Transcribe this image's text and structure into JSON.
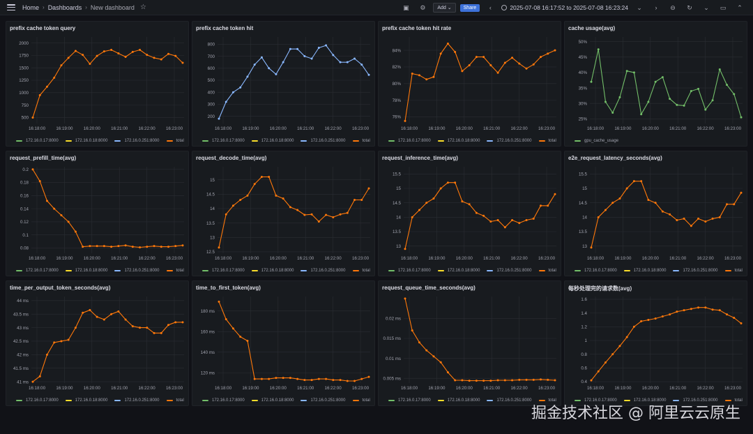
{
  "topbar": {
    "breadcrumbs": [
      "Home",
      "Dashboards",
      "New dashboard"
    ],
    "add_label": "Add",
    "share_label": "Share",
    "time_range": "2025-07-08 16:17:52 to 2025-07-08 16:23:24"
  },
  "watermark": "掘金技术社区 @ 阿里云云原生",
  "series_colors": {
    "172.16.0.17:8000": "#73bf69",
    "172.16.0.18:8000": "#fade2a",
    "172.16.0.251:8000": "#8ab8ff",
    "total": "#ff780a",
    "gpu_cache_usage": "#73bf69"
  },
  "legend_default": [
    "172.16.0.17:8000",
    "172.16.0.18:8000",
    "172.16.0.251:8000",
    "total"
  ],
  "x_ticks": [
    "16:18:00",
    "16:19:00",
    "16:20:00",
    "16:21:00",
    "16:22:00",
    "16:23:00"
  ],
  "chart_data": [
    {
      "type": "line",
      "title": "prefix cache token query",
      "series": [
        {
          "name": "total",
          "values": [
            500,
            950,
            1120,
            1300,
            1550,
            1700,
            1840,
            1760,
            1580,
            1740,
            1830,
            1860,
            1790,
            1720,
            1820,
            1860,
            1760,
            1700,
            1670,
            1780,
            1740,
            1600
          ]
        }
      ],
      "yticks": [
        "500",
        "750",
        "1000",
        "1250",
        "1500",
        "1750",
        "2000"
      ],
      "ylim": [
        380,
        2120
      ],
      "highlight": "total"
    },
    {
      "type": "line",
      "title": "prefix cache token hit",
      "series": [
        {
          "name": "172.16.0.251:8000",
          "values": [
            180,
            320,
            400,
            440,
            530,
            630,
            690,
            600,
            550,
            650,
            760,
            760,
            700,
            680,
            770,
            790,
            710,
            650,
            650,
            680,
            630,
            545
          ]
        }
      ],
      "yticks": [
        "200",
        "300",
        "400",
        "500",
        "600",
        "700",
        "800"
      ],
      "ylim": [
        140,
        860
      ],
      "highlight": "172.16.0.251:8000"
    },
    {
      "type": "line",
      "title": "prefix cache token hit rate",
      "series": [
        {
          "name": "total",
          "values": [
            75.5,
            81.2,
            81.0,
            80.5,
            80.8,
            83.6,
            84.8,
            83.8,
            81.5,
            82.2,
            83.2,
            83.2,
            82.2,
            81.3,
            82.5,
            83.1,
            82.4,
            81.8,
            82.3,
            83.2,
            83.6,
            84.0
          ]
        }
      ],
      "yticks": [
        "76%",
        "78%",
        "80%",
        "82%",
        "84%"
      ],
      "ytick_values": [
        76,
        78,
        80,
        82,
        84
      ],
      "ylim": [
        75.2,
        85.6
      ],
      "highlight": "total"
    },
    {
      "type": "line",
      "title": "cache usage(avg)",
      "series": [
        {
          "name": "gpu_cache_usage",
          "values": [
            37,
            47.5,
            30.5,
            27,
            32,
            40.5,
            40,
            26.5,
            30.5,
            37,
            38.5,
            31.5,
            29.5,
            29.3,
            34,
            34.7,
            28,
            31,
            41,
            36,
            33,
            25.5
          ]
        }
      ],
      "yticks": [
        "25%",
        "30%",
        "35%",
        "40%",
        "45%",
        "50%"
      ],
      "ytick_values": [
        25,
        30,
        35,
        40,
        45,
        50
      ],
      "ylim": [
        23.5,
        51.5
      ],
      "legend": [
        "gpu_cache_usage"
      ],
      "highlight": "gpu_cache_usage"
    },
    {
      "type": "line",
      "title": "request_prefill_time(avg)",
      "series": [
        {
          "name": "total",
          "values": [
            0.2,
            0.182,
            0.152,
            0.14,
            0.13,
            0.12,
            0.105,
            0.082,
            0.083,
            0.083,
            0.083,
            0.082,
            0.083,
            0.084,
            0.082,
            0.081,
            0.082,
            0.083,
            0.082,
            0.082,
            0.083,
            0.084
          ]
        }
      ],
      "yticks": [
        "0.08",
        "0.1",
        "0.12",
        "0.14",
        "0.16",
        "0.18",
        "0.2"
      ],
      "ytick_values": [
        0.08,
        0.1,
        0.12,
        0.14,
        0.16,
        0.18,
        0.2
      ],
      "ylim": [
        0.072,
        0.204
      ],
      "highlight": "total"
    },
    {
      "type": "line",
      "title": "request_decode_time(avg)",
      "series": [
        {
          "name": "total",
          "values": [
            12.65,
            13.8,
            14.1,
            14.3,
            14.45,
            14.85,
            15.1,
            15.1,
            14.45,
            14.35,
            14.05,
            13.95,
            13.78,
            13.8,
            13.55,
            13.78,
            13.7,
            13.8,
            13.85,
            14.3,
            14.3,
            14.7
          ]
        }
      ],
      "yticks": [
        "12.5",
        "13",
        "13.5",
        "14",
        "14.5",
        "15"
      ],
      "ytick_values": [
        12.5,
        13,
        13.5,
        14,
        14.5,
        15
      ],
      "ylim": [
        12.45,
        15.45
      ],
      "highlight": "total"
    },
    {
      "type": "line",
      "title": "request_inference_time(avg)",
      "series": [
        {
          "name": "total",
          "values": [
            12.9,
            14.0,
            14.25,
            14.5,
            14.65,
            15.0,
            15.2,
            15.2,
            14.55,
            14.45,
            14.15,
            14.05,
            13.85,
            13.9,
            13.65,
            13.9,
            13.8,
            13.9,
            13.95,
            14.4,
            14.4,
            14.8
          ]
        }
      ],
      "yticks": [
        "13",
        "13.5",
        "14",
        "14.5",
        "15",
        "15.5"
      ],
      "ytick_values": [
        13,
        13.5,
        14,
        14.5,
        15,
        15.5
      ],
      "ylim": [
        12.75,
        15.75
      ],
      "highlight": "total"
    },
    {
      "type": "line",
      "title": "e2e_request_latency_seconds(avg)",
      "series": [
        {
          "name": "total",
          "values": [
            12.95,
            14.0,
            14.25,
            14.5,
            14.65,
            15.0,
            15.25,
            15.25,
            14.6,
            14.5,
            14.2,
            14.1,
            13.9,
            13.95,
            13.7,
            13.95,
            13.85,
            13.95,
            14.0,
            14.45,
            14.45,
            14.85
          ]
        }
      ],
      "yticks": [
        "13",
        "13.5",
        "14",
        "14.5",
        "15",
        "15.5"
      ],
      "ytick_values": [
        13,
        13.5,
        14,
        14.5,
        15,
        15.5
      ],
      "ylim": [
        12.75,
        15.75
      ],
      "highlight": "total"
    },
    {
      "type": "line",
      "title": "time_per_output_token_seconds(avg)",
      "series": [
        {
          "name": "total",
          "values": [
            41.0,
            41.2,
            42.0,
            42.45,
            42.5,
            42.55,
            43.0,
            43.55,
            43.65,
            43.4,
            43.3,
            43.5,
            43.6,
            43.3,
            43.05,
            43.0,
            43.0,
            42.8,
            42.8,
            43.1,
            43.2,
            43.2
          ]
        }
      ],
      "yticks": [
        "41 ms",
        "41.5 ms",
        "42 ms",
        "42.5 ms",
        "43 ms",
        "43.5 ms",
        "44 ms"
      ],
      "ytick_values": [
        41,
        41.5,
        42,
        42.5,
        43,
        43.5,
        44
      ],
      "ylim": [
        40.95,
        44.15
      ],
      "highlight": "total"
    },
    {
      "type": "line",
      "title": "time_to_first_token(avg)",
      "series": [
        {
          "name": "total",
          "values": [
            189,
            172,
            163,
            155,
            151,
            114,
            114,
            114,
            115,
            115,
            115,
            114,
            113,
            113,
            114,
            114,
            113,
            113,
            112,
            112,
            114,
            116
          ]
        }
      ],
      "yticks": [
        "120 ms",
        "140 ms",
        "160 ms",
        "180 ms"
      ],
      "ytick_values": [
        120,
        140,
        160,
        180
      ],
      "ylim": [
        110,
        194
      ],
      "highlight": "total"
    },
    {
      "type": "line",
      "title": "request_queue_time_seconds(avg)",
      "series": [
        {
          "name": "total",
          "values": [
            0.025,
            0.017,
            0.014,
            0.012,
            0.0105,
            0.009,
            0.0065,
            0.0045,
            0.0045,
            0.0044,
            0.0044,
            0.0044,
            0.0044,
            0.0045,
            0.0045,
            0.0045,
            0.0046,
            0.0046,
            0.0046,
            0.0047,
            0.0046,
            0.0045
          ]
        }
      ],
      "yticks": [
        "0.005 ms",
        "0.01 ms",
        "0.015 ms",
        "0.02 ms"
      ],
      "ytick_values": [
        0.005,
        0.01,
        0.015,
        0.02
      ],
      "ylim": [
        0.0038,
        0.0255
      ],
      "highlight": "total"
    },
    {
      "type": "line",
      "title": "每秒处理完的请求数(avg)",
      "series": [
        {
          "name": "total",
          "values": [
            0.42,
            0.55,
            0.68,
            0.8,
            0.92,
            1.05,
            1.2,
            1.28,
            1.3,
            1.32,
            1.35,
            1.38,
            1.42,
            1.44,
            1.46,
            1.48,
            1.48,
            1.45,
            1.44,
            1.38,
            1.33,
            1.25
          ]
        }
      ],
      "yticks": [
        "0.4",
        "0.6",
        "0.8",
        "1",
        "1.2",
        "1.4",
        "1.6"
      ],
      "ytick_values": [
        0.4,
        0.6,
        0.8,
        1,
        1.2,
        1.4,
        1.6
      ],
      "ylim": [
        0.38,
        1.64
      ],
      "highlight": "total"
    }
  ]
}
